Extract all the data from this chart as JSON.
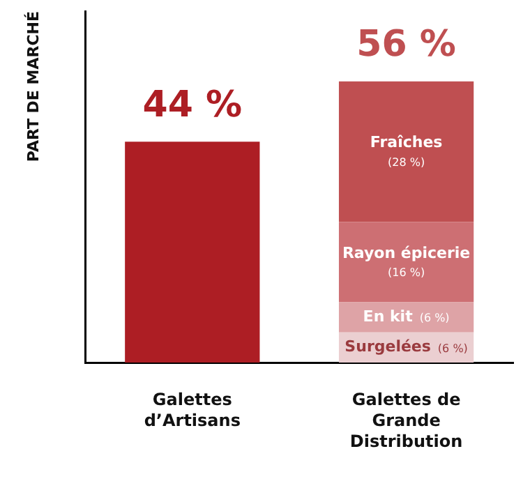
{
  "chart_data": {
    "type": "bar",
    "stacked": true,
    "ylabel": "PART DE MARCHÉ",
    "categories": [
      "Galettes d’Artisans",
      "Galettes de Grande Distribution"
    ],
    "ylim": [
      0,
      70
    ],
    "tick_labels": "x",
    "grid": false,
    "legend": false,
    "series": [
      {
        "color": "#ad1e24",
        "values": [
          44,
          null
        ]
      },
      {
        "name": "Surgelées",
        "color": "#ebcfd1",
        "values": [
          null,
          6
        ],
        "value_labels": [
          null,
          "(6 %)"
        ]
      },
      {
        "name": "En kit",
        "color": "#dea3a6",
        "values": [
          null,
          6
        ],
        "value_labels": [
          null,
          "(6 %)"
        ]
      },
      {
        "name": "Rayon épicerie",
        "color": "#cd6f73",
        "values": [
          null,
          16
        ],
        "value_labels": [
          null,
          "(16 %)"
        ]
      },
      {
        "name": "Fraîches",
        "color": "#bf4f51",
        "values": [
          null,
          28
        ],
        "value_labels": [
          null,
          "(28 %)"
        ]
      }
    ],
    "totals": [
      "44 %",
      "56 %"
    ]
  }
}
